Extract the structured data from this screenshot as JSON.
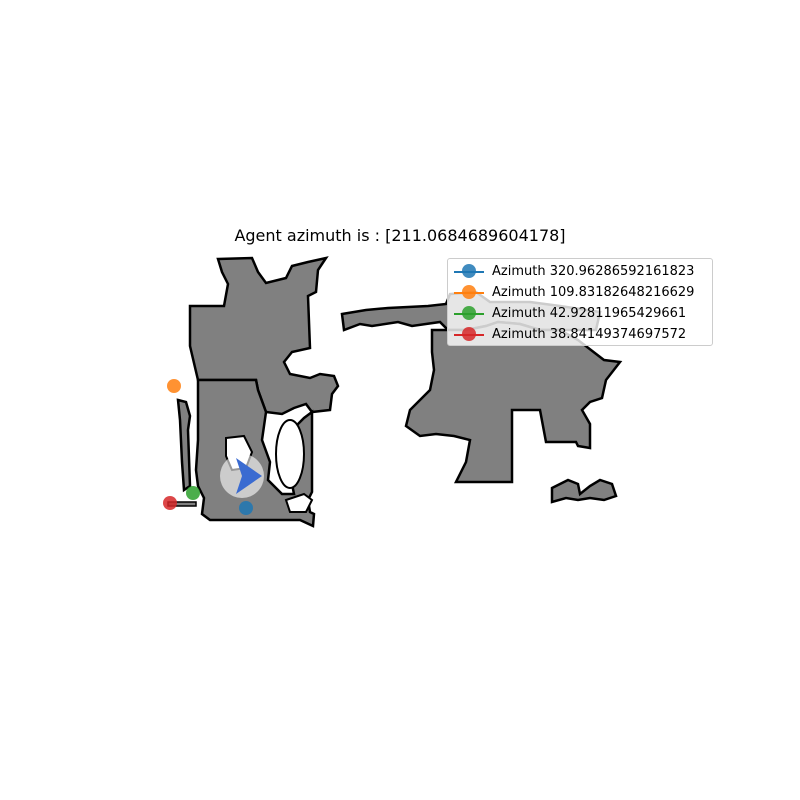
{
  "title": "Agent azimuth is : [211.0684689604178]",
  "agent": {
    "azimuth": 211.0684689604178,
    "marker_color": "#3a6bd1"
  },
  "map_colors": {
    "floor": "#808080",
    "wall": "#000000",
    "background": "#ffffff"
  },
  "legend": {
    "placement": "upper right",
    "items": [
      {
        "label": "Azimuth 320.96286592161823",
        "color": "#1f77b4"
      },
      {
        "label": "Azimuth 109.83182648216629",
        "color": "#ff7f0e"
      },
      {
        "label": "Azimuth 42.92811965429661",
        "color": "#2ca02c"
      },
      {
        "label": "Azimuth 38.84149374697572",
        "color": "#d62728"
      }
    ]
  }
}
